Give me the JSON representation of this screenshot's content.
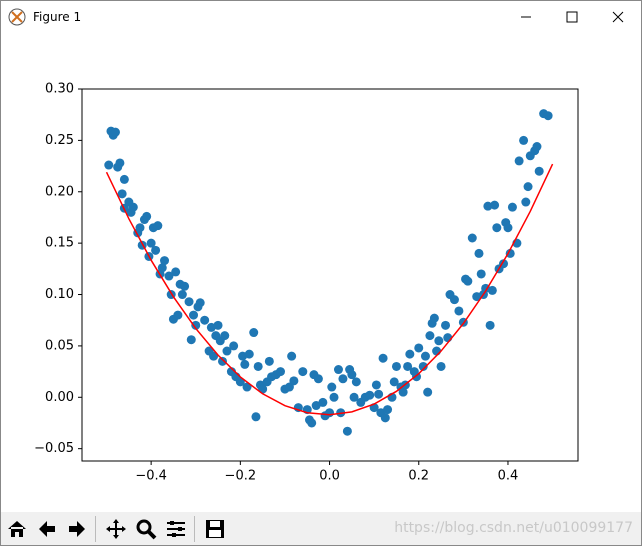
{
  "window": {
    "title": "Figure 1"
  },
  "chart_data": {
    "type": "scatter",
    "xlim": [
      -0.555,
      0.557
    ],
    "ylim": [
      -0.062,
      0.3
    ],
    "xticks": [
      {
        "value": -0.4,
        "label": "−0.4"
      },
      {
        "value": -0.2,
        "label": "−0.2"
      },
      {
        "value": 0,
        "label": "0.0"
      },
      {
        "value": 0.2,
        "label": "0.2"
      },
      {
        "value": 0.4,
        "label": "0.4"
      }
    ],
    "yticks": [
      {
        "value": -0.05,
        "label": "−0.05"
      },
      {
        "value": 0,
        "label": "0.00"
      },
      {
        "value": 0.05,
        "label": "0.05"
      },
      {
        "value": 0.1,
        "label": "0.10"
      },
      {
        "value": 0.15,
        "label": "0.15"
      },
      {
        "value": 0.2,
        "label": "0.20"
      },
      {
        "value": 0.25,
        "label": "0.25"
      },
      {
        "value": 0.3,
        "label": "0.30"
      }
    ],
    "grid": false,
    "series": [
      {
        "type": "scatter",
        "color": "#1f77b4",
        "x": [
          -0.495,
          -0.49,
          -0.485,
          -0.48,
          -0.475,
          -0.47,
          -0.465,
          -0.46,
          -0.46,
          -0.45,
          -0.445,
          -0.44,
          -0.43,
          -0.425,
          -0.42,
          -0.415,
          -0.41,
          -0.405,
          -0.4,
          -0.395,
          -0.39,
          -0.385,
          -0.38,
          -0.375,
          -0.37,
          -0.36,
          -0.355,
          -0.35,
          -0.345,
          -0.34,
          -0.335,
          -0.33,
          -0.325,
          -0.315,
          -0.31,
          -0.305,
          -0.3,
          -0.295,
          -0.29,
          -0.28,
          -0.27,
          -0.265,
          -0.26,
          -0.255,
          -0.25,
          -0.245,
          -0.24,
          -0.235,
          -0.23,
          -0.22,
          -0.215,
          -0.21,
          -0.2,
          -0.195,
          -0.19,
          -0.185,
          -0.18,
          -0.17,
          -0.165,
          -0.16,
          -0.155,
          -0.15,
          -0.14,
          -0.135,
          -0.13,
          -0.12,
          -0.11,
          -0.1,
          -0.09,
          -0.085,
          -0.08,
          -0.07,
          -0.06,
          -0.05,
          -0.045,
          -0.04,
          -0.035,
          -0.03,
          -0.025,
          -0.015,
          -0.01,
          0,
          0.005,
          0.01,
          0.02,
          0.025,
          0.03,
          0.04,
          0.045,
          0.05,
          0.055,
          0.06,
          0.07,
          0.08,
          0.09,
          0.1,
          0.105,
          0.11,
          0.115,
          0.12,
          0.125,
          0.13,
          0.14,
          0.145,
          0.15,
          0.16,
          0.165,
          0.17,
          0.175,
          0.18,
          0.19,
          0.195,
          0.2,
          0.21,
          0.215,
          0.22,
          0.225,
          0.23,
          0.235,
          0.24,
          0.245,
          0.25,
          0.26,
          0.265,
          0.27,
          0.28,
          0.29,
          0.3,
          0.305,
          0.31,
          0.32,
          0.33,
          0.335,
          0.34,
          0.345,
          0.35,
          0.355,
          0.36,
          0.365,
          0.37,
          0.375,
          0.38,
          0.39,
          0.395,
          0.4,
          0.405,
          0.41,
          0.42,
          0.425,
          0.435,
          0.44,
          0.445,
          0.45,
          0.46,
          0.465,
          0.47,
          0.48,
          0.49
        ],
        "values": [
          0.226,
          0.259,
          0.255,
          0.258,
          0.224,
          0.228,
          0.198,
          0.212,
          0.184,
          0.19,
          0.18,
          0.185,
          0.16,
          0.165,
          0.148,
          0.173,
          0.176,
          0.137,
          0.15,
          0.165,
          0.143,
          0.167,
          0.12,
          0.126,
          0.133,
          0.118,
          0.1,
          0.076,
          0.122,
          0.08,
          0.11,
          0.1,
          0.108,
          0.093,
          0.056,
          0.08,
          0.07,
          0.088,
          0.092,
          0.075,
          0.045,
          0.068,
          0.04,
          0.06,
          0.07,
          0.055,
          0.035,
          0.06,
          0.045,
          0.025,
          0.05,
          0.02,
          0.015,
          0.04,
          0.032,
          0.01,
          0.042,
          0.063,
          -0.019,
          0.03,
          0.012,
          0.008,
          0.015,
          0.035,
          0.02,
          0.022,
          0.025,
          0.008,
          0.01,
          0.04,
          0.016,
          -0.01,
          0.025,
          -0.012,
          -0.022,
          -0.025,
          0.022,
          -0.008,
          0.018,
          -0.005,
          -0.018,
          -0.015,
          0.01,
          0,
          0.027,
          -0.015,
          0.018,
          -0.033,
          0.027,
          0.022,
          0,
          0.015,
          -0.005,
          0,
          0.002,
          -0.01,
          0.012,
          0.003,
          -0.015,
          0.038,
          -0.02,
          -0.012,
          0,
          0.015,
          0.03,
          0.01,
          0.005,
          0.012,
          0.03,
          0.042,
          0.025,
          0.02,
          0.048,
          0.03,
          0.04,
          0.005,
          0.06,
          0.072,
          0.077,
          0.045,
          0.055,
          0.03,
          0.07,
          0.058,
          0.1,
          0.095,
          0.084,
          0.073,
          0.115,
          0.113,
          0.155,
          0.098,
          0.14,
          0.12,
          0.1,
          0.106,
          0.186,
          0.07,
          0.104,
          0.187,
          0.165,
          0.125,
          0.13,
          0.17,
          0.165,
          0.14,
          0.185,
          0.15,
          0.23,
          0.25,
          0.19,
          0.205,
          0.235,
          0.24,
          0.244,
          0.22,
          0.276,
          0.274
        ]
      },
      {
        "type": "line",
        "color": "#ff0000",
        "x": [
          -0.5,
          -0.45,
          -0.4,
          -0.35,
          -0.3,
          -0.25,
          -0.2,
          -0.15,
          -0.1,
          -0.05,
          0,
          0.05,
          0.1,
          0.15,
          0.2,
          0.25,
          0.3,
          0.35,
          0.4,
          0.45,
          0.5
        ],
        "values": [
          0.219,
          0.1738,
          0.1334,
          0.0978,
          0.067,
          0.041,
          0.0198,
          0.0034,
          -0.0082,
          -0.015,
          -0.017,
          -0.0142,
          -0.0066,
          0.0058,
          0.023,
          0.045,
          0.0718,
          0.1034,
          0.1398,
          0.181,
          0.227
        ]
      }
    ]
  },
  "watermark": "https://blog.csdn.net/u010099177"
}
